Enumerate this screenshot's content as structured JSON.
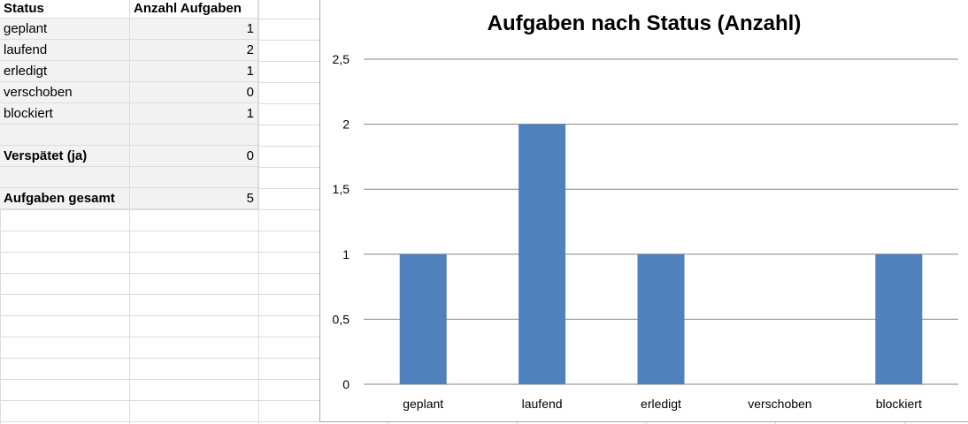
{
  "table": {
    "header": {
      "status": "Status",
      "count": "Anzahl Aufgaben"
    },
    "rows": [
      {
        "label": "geplant",
        "value": "1"
      },
      {
        "label": "laufend",
        "value": "2"
      },
      {
        "label": "erledigt",
        "value": "1"
      },
      {
        "label": "verschoben",
        "value": "0"
      },
      {
        "label": "blockiert",
        "value": "1"
      }
    ],
    "late": {
      "label": "Verspätet (ja)",
      "value": "0"
    },
    "total": {
      "label": "Aufgaben gesamt",
      "value": "5"
    }
  },
  "colors": {
    "bar": "#4f81bd",
    "gridline": "#868686",
    "axis": "#868686"
  },
  "chart_data": {
    "type": "bar",
    "title": "Aufgaben nach Status (Anzahl)",
    "categories": [
      "geplant",
      "laufend",
      "erledigt",
      "verschoben",
      "blockiert"
    ],
    "values": [
      1,
      2,
      1,
      0,
      1
    ],
    "ylim": [
      0,
      2.5
    ],
    "yticks": [
      "0",
      "0,5",
      "1",
      "1,5",
      "2",
      "2,5"
    ],
    "xlabel": "",
    "ylabel": "",
    "grid": true,
    "legend": "none"
  }
}
